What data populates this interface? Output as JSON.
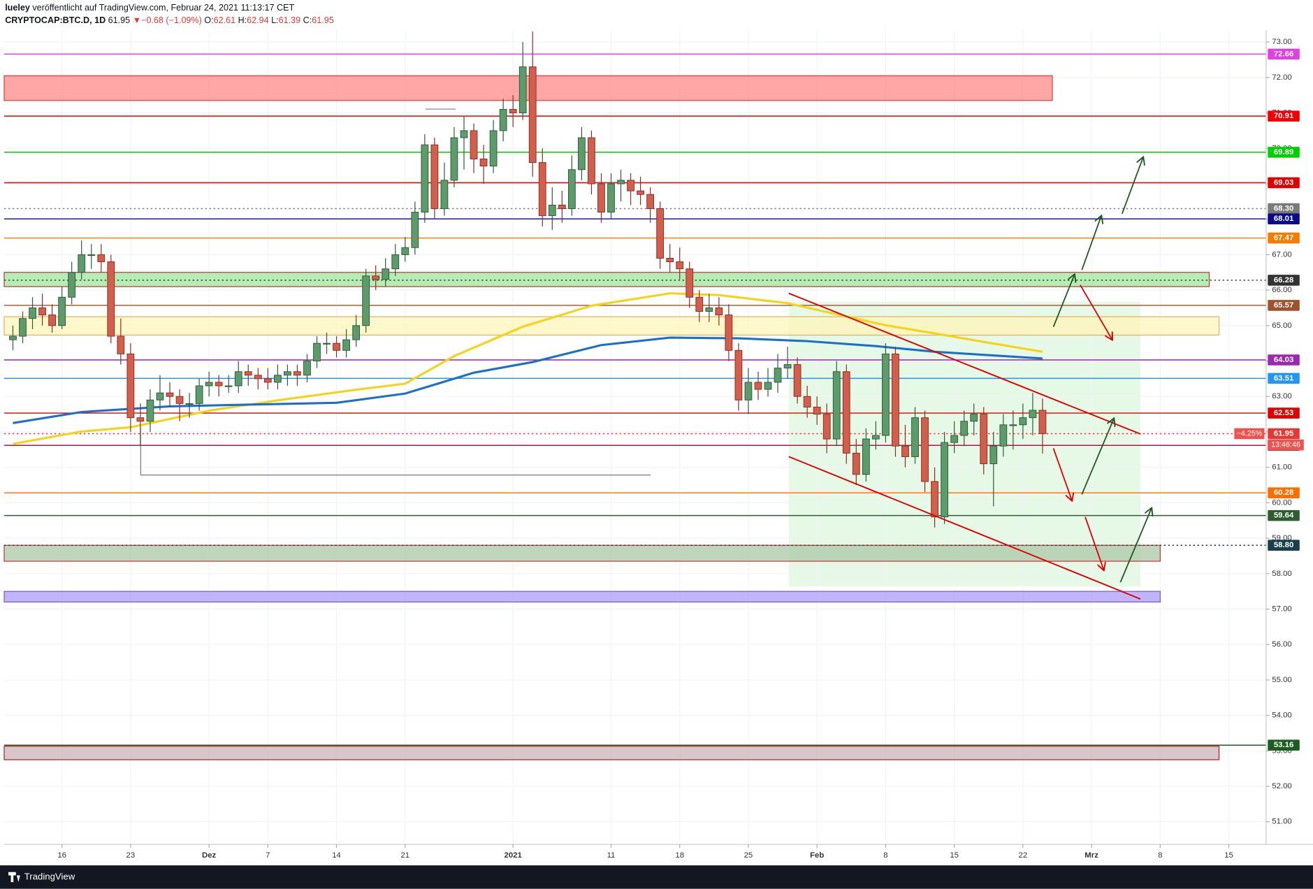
{
  "header": {
    "author": "lueley",
    "published": "veröffentlicht auf TradingView.com, Februar 24, 2021 11:13:17 CET",
    "symbol": "CRYPTOCAP:BTC.D, 1D",
    "last": 61.95,
    "direction": "▼",
    "change": "−0.68 (−1.09%)",
    "o_label": "O:",
    "open": 62.61,
    "h_label": "H:",
    "high": 62.94,
    "l_label": "L:",
    "low": 61.39,
    "c_label": "C:",
    "close": 61.95
  },
  "footer": {
    "brand": "TradingView"
  },
  "chart_data": {
    "type": "candlestick",
    "xlim": [
      -5.89,
      122.8
    ],
    "ylim": [
      50.36,
      73.33
    ],
    "grid": true,
    "up_color": "#5d9b6a",
    "down_color": "#d0604d",
    "xticks": [
      {
        "value": 0,
        "label": "16"
      },
      {
        "value": 7,
        "label": "23"
      },
      {
        "value": 15,
        "label": "Dez"
      },
      {
        "value": 21,
        "label": "7"
      },
      {
        "value": 28,
        "label": "14"
      },
      {
        "value": 35,
        "label": "21"
      },
      {
        "value": 46,
        "label": "2021"
      },
      {
        "value": 56,
        "label": "11"
      },
      {
        "value": 63,
        "label": "18"
      },
      {
        "value": 70,
        "label": "25"
      },
      {
        "value": 77,
        "label": "Feb"
      },
      {
        "value": 84,
        "label": "8"
      },
      {
        "value": 91,
        "label": "15"
      },
      {
        "value": 98,
        "label": "22"
      },
      {
        "value": 105,
        "label": "Mrz"
      },
      {
        "value": 112,
        "label": "8"
      },
      {
        "value": 119,
        "label": "15"
      }
    ],
    "yticks": [
      {
        "value": 51,
        "label": "51.00"
      },
      {
        "value": 52,
        "label": "52.00"
      },
      {
        "value": 53,
        "label": "53.00"
      },
      {
        "value": 54,
        "label": "54.00"
      },
      {
        "value": 55,
        "label": "55.00"
      },
      {
        "value": 56,
        "label": "56.00"
      },
      {
        "value": 57,
        "label": "57.00"
      },
      {
        "value": 58,
        "label": "58.00"
      },
      {
        "value": 59,
        "label": "59.00"
      },
      {
        "value": 60,
        "label": "60.00"
      },
      {
        "value": 61,
        "label": "61.00"
      },
      {
        "value": 62,
        "label": "62.00"
      },
      {
        "value": 63,
        "label": "63.00"
      },
      {
        "value": 64,
        "label": "64.00"
      },
      {
        "value": 65,
        "label": "65.00"
      },
      {
        "value": 66,
        "label": "66.00"
      },
      {
        "value": 67,
        "label": "67.00"
      },
      {
        "value": 68,
        "label": "68.00"
      },
      {
        "value": 69,
        "label": "69.00"
      },
      {
        "value": 70,
        "label": "70.00"
      },
      {
        "value": 71,
        "label": "71.00"
      },
      {
        "value": 72,
        "label": "72.00"
      },
      {
        "value": 73,
        "label": "73.00"
      }
    ],
    "zones": [
      {
        "from": 71.35,
        "to": 72.05,
        "end": 101,
        "fill": "#ff8a8a",
        "stroke": "#e53935"
      },
      {
        "from": 66.1,
        "to": 66.5,
        "end": 117,
        "fill": "#9be89b",
        "stroke": "#d32f2f"
      },
      {
        "from": 64.73,
        "to": 65.25,
        "end": 118,
        "fill": "#fff6b8",
        "stroke": "#e0b060"
      },
      {
        "from": 58.35,
        "to": 58.8,
        "end": 112,
        "fill": "#a9c8a5",
        "stroke": "#d32f2f"
      },
      {
        "from": 57.2,
        "to": 57.5,
        "end": 112,
        "fill": "#a99cf5",
        "stroke": "#7e57c2"
      },
      {
        "from": 52.75,
        "to": 53.13,
        "end": 118,
        "fill": "#cbb3b8",
        "stroke": "#b71c1c"
      }
    ],
    "levels": [
      {
        "value": 72.66,
        "color": "#e040e0"
      },
      {
        "value": 70.91,
        "color": "#f00000"
      },
      {
        "value": 69.89,
        "color": "#00d000"
      },
      {
        "value": 69.03,
        "color": "#e00000"
      },
      {
        "value": 68.3,
        "label": "68.30",
        "color": "#7a7a7a",
        "dash": true
      },
      {
        "value": 68.01,
        "color": "#0a0a8a"
      },
      {
        "value": 67.47,
        "color": "#f57c00"
      },
      {
        "value": 66.28,
        "color": "#333333",
        "dash": true
      },
      {
        "value": 65.57,
        "color": "#a0522d"
      },
      {
        "value": 64.03,
        "color": "#9c27b0"
      },
      {
        "value": 63.51,
        "color": "#2196f3"
      },
      {
        "value": 62.53,
        "color": "#e00000"
      },
      {
        "value": 61.95,
        "color": "#e53935",
        "dash": true
      },
      {
        "value": 61.62,
        "color": "#b0164e"
      },
      {
        "value": 60.28,
        "color": "#ff6d00"
      },
      {
        "value": 59.64,
        "color": "#2e5d2e"
      },
      {
        "value": 58.8,
        "label": "58.80",
        "color": "#17404a",
        "dash": true
      },
      {
        "value": 53.16,
        "color": "#1b5e20"
      }
    ],
    "badges": {
      "change": "−4.25%",
      "countdown": "13:46:46"
    },
    "indicators": [
      {
        "color": "#f5d31b",
        "x": [
          -5,
          2,
          7,
          15,
          22,
          30,
          35,
          40,
          47,
          54,
          62,
          67,
          74,
          79,
          84,
          89,
          94,
          100
        ],
        "values": [
          61.66,
          62.01,
          62.13,
          62.6,
          62.89,
          63.19,
          63.36,
          64.14,
          64.97,
          65.56,
          65.91,
          65.86,
          65.63,
          65.32,
          65.01,
          64.78,
          64.54,
          64.26
        ]
      },
      {
        "color": "#1e6fc8",
        "x": [
          -5,
          2,
          11,
          19,
          28,
          35,
          42,
          48,
          55,
          62,
          69,
          76,
          83,
          89,
          96,
          100
        ],
        "values": [
          62.25,
          62.56,
          62.72,
          62.77,
          62.82,
          63.08,
          63.67,
          63.97,
          64.45,
          64.66,
          64.64,
          64.56,
          64.42,
          64.26,
          64.14,
          64.07
        ]
      }
    ],
    "x": [
      -5,
      -4,
      -3,
      -2,
      -1,
      0,
      1,
      2,
      3,
      4,
      5,
      6,
      7,
      8,
      9,
      10,
      11,
      12,
      13,
      14,
      15,
      16,
      17,
      18,
      19,
      20,
      21,
      22,
      23,
      24,
      25,
      26,
      27,
      28,
      29,
      30,
      31,
      32,
      33,
      34,
      35,
      36,
      37,
      38,
      39,
      40,
      41,
      42,
      43,
      44,
      45,
      46,
      47,
      48,
      49,
      50,
      51,
      52,
      53,
      54,
      55,
      56,
      57,
      58,
      59,
      60,
      61,
      62,
      63,
      64,
      65,
      66,
      67,
      68,
      69,
      70,
      71,
      72,
      73,
      74,
      75,
      76,
      77,
      78,
      79,
      80,
      81,
      82,
      83,
      84,
      85,
      86,
      87,
      88,
      89,
      90,
      91,
      92,
      93,
      94,
      95,
      96,
      97,
      98,
      99,
      100
    ],
    "ohlc": [
      [
        64.6,
        65.0,
        64.3,
        64.7
      ],
      [
        64.7,
        65.4,
        64.5,
        65.2
      ],
      [
        65.2,
        65.8,
        64.9,
        65.5
      ],
      [
        65.5,
        65.9,
        65.0,
        65.3
      ],
      [
        65.3,
        65.6,
        64.8,
        65.0
      ],
      [
        65.0,
        66.1,
        64.9,
        65.8
      ],
      [
        65.8,
        66.8,
        65.6,
        66.5
      ],
      [
        66.5,
        67.4,
        66.3,
        67.0
      ],
      [
        67.0,
        67.3,
        66.6,
        67.0
      ],
      [
        67.0,
        67.3,
        66.5,
        66.8
      ],
      [
        66.8,
        67.0,
        64.5,
        64.7
      ],
      [
        64.7,
        65.2,
        63.9,
        64.2
      ],
      [
        64.2,
        64.5,
        62.0,
        62.4
      ],
      [
        62.4,
        62.8,
        61.6,
        62.3
      ],
      [
        62.3,
        63.2,
        62.0,
        62.9
      ],
      [
        62.9,
        63.6,
        62.6,
        63.1
      ],
      [
        63.1,
        63.4,
        62.7,
        63.0
      ],
      [
        63.0,
        63.2,
        62.3,
        62.8
      ],
      [
        62.8,
        63.1,
        62.4,
        62.8
      ],
      [
        62.8,
        63.5,
        62.6,
        63.3
      ],
      [
        63.3,
        63.7,
        63.0,
        63.4
      ],
      [
        63.4,
        63.6,
        63.0,
        63.3
      ],
      [
        63.3,
        63.6,
        63.1,
        63.3
      ],
      [
        63.3,
        64.0,
        63.1,
        63.7
      ],
      [
        63.7,
        63.9,
        63.3,
        63.6
      ],
      [
        63.6,
        63.8,
        63.2,
        63.5
      ],
      [
        63.5,
        63.8,
        63.2,
        63.4
      ],
      [
        63.4,
        63.9,
        63.2,
        63.6
      ],
      [
        63.6,
        63.9,
        63.3,
        63.7
      ],
      [
        63.7,
        63.9,
        63.3,
        63.6
      ],
      [
        63.6,
        64.2,
        63.4,
        64.0
      ],
      [
        64.0,
        64.7,
        63.8,
        64.5
      ],
      [
        64.5,
        64.8,
        64.2,
        64.5
      ],
      [
        64.5,
        64.7,
        64.1,
        64.3
      ],
      [
        64.3,
        64.9,
        64.1,
        64.6
      ],
      [
        64.6,
        65.3,
        64.4,
        65.0
      ],
      [
        65.0,
        66.6,
        64.8,
        66.4
      ],
      [
        66.4,
        66.7,
        66.0,
        66.3
      ],
      [
        66.3,
        66.9,
        66.1,
        66.6
      ],
      [
        66.6,
        67.3,
        66.4,
        67.0
      ],
      [
        67.0,
        67.5,
        66.8,
        67.2
      ],
      [
        67.2,
        68.5,
        67.0,
        68.2
      ],
      [
        68.2,
        70.4,
        67.9,
        70.1
      ],
      [
        70.1,
        70.3,
        68.0,
        68.3
      ],
      [
        68.3,
        69.6,
        68.1,
        69.1
      ],
      [
        69.1,
        70.6,
        68.9,
        70.3
      ],
      [
        70.3,
        70.9,
        69.4,
        70.5
      ],
      [
        70.5,
        70.7,
        69.3,
        69.7
      ],
      [
        69.7,
        70.1,
        69.0,
        69.5
      ],
      [
        69.5,
        70.8,
        69.3,
        70.5
      ],
      [
        70.5,
        71.4,
        70.2,
        71.1
      ],
      [
        71.1,
        71.5,
        70.6,
        71.0
      ],
      [
        71.0,
        73.0,
        70.8,
        72.3
      ],
      [
        72.3,
        73.3,
        69.2,
        69.6
      ],
      [
        69.6,
        70.0,
        67.8,
        68.1
      ],
      [
        68.1,
        68.9,
        67.7,
        68.4
      ],
      [
        68.4,
        68.8,
        67.9,
        68.3
      ],
      [
        68.3,
        69.8,
        68.1,
        69.4
      ],
      [
        69.4,
        70.6,
        69.1,
        70.3
      ],
      [
        70.3,
        70.5,
        68.7,
        69.0
      ],
      [
        69.0,
        69.3,
        67.9,
        68.2
      ],
      [
        68.2,
        69.3,
        68.0,
        69.0
      ],
      [
        69.0,
        69.4,
        68.5,
        69.1
      ],
      [
        69.1,
        69.3,
        68.4,
        68.8
      ],
      [
        68.8,
        69.2,
        68.4,
        68.7
      ],
      [
        68.7,
        68.9,
        67.9,
        68.3
      ],
      [
        68.3,
        68.5,
        66.6,
        66.9
      ],
      [
        66.9,
        67.3,
        66.5,
        66.8
      ],
      [
        66.8,
        67.2,
        66.3,
        66.6
      ],
      [
        66.6,
        66.8,
        65.5,
        65.8
      ],
      [
        65.8,
        66.0,
        65.1,
        65.4
      ],
      [
        65.4,
        65.9,
        65.1,
        65.5
      ],
      [
        65.5,
        65.8,
        65.0,
        65.3
      ],
      [
        65.3,
        65.6,
        64.0,
        64.3
      ],
      [
        64.3,
        64.5,
        62.6,
        62.9
      ],
      [
        62.9,
        63.8,
        62.5,
        63.4
      ],
      [
        63.4,
        63.7,
        62.9,
        63.2
      ],
      [
        63.2,
        63.8,
        63.0,
        63.4
      ],
      [
        63.4,
        64.2,
        63.1,
        63.8
      ],
      [
        63.8,
        64.4,
        63.5,
        63.9
      ],
      [
        63.9,
        64.1,
        62.8,
        63.0
      ],
      [
        63.0,
        63.3,
        62.4,
        62.7
      ],
      [
        62.7,
        63.0,
        62.2,
        62.5
      ],
      [
        62.5,
        62.8,
        61.4,
        61.8
      ],
      [
        61.8,
        64.0,
        61.6,
        63.7
      ],
      [
        63.7,
        63.9,
        61.1,
        61.4
      ],
      [
        61.4,
        61.8,
        60.5,
        60.8
      ],
      [
        60.8,
        62.1,
        60.6,
        61.8
      ],
      [
        61.8,
        62.3,
        61.5,
        61.9
      ],
      [
        61.9,
        64.5,
        61.7,
        64.2
      ],
      [
        64.2,
        64.4,
        61.3,
        61.6
      ],
      [
        61.6,
        62.2,
        61.0,
        61.3
      ],
      [
        61.3,
        62.7,
        61.1,
        62.4
      ],
      [
        62.4,
        62.6,
        60.3,
        60.6
      ],
      [
        60.6,
        61.0,
        59.3,
        59.6
      ],
      [
        59.6,
        62.0,
        59.4,
        61.7
      ],
      [
        61.7,
        62.3,
        61.4,
        61.9
      ],
      [
        61.9,
        62.6,
        61.6,
        62.3
      ],
      [
        62.3,
        62.8,
        61.9,
        62.5
      ],
      [
        62.5,
        62.7,
        60.8,
        61.1
      ],
      [
        61.1,
        62.0,
        59.9,
        61.6
      ],
      [
        61.6,
        62.5,
        61.3,
        62.2
      ],
      [
        62.2,
        62.6,
        61.5,
        62.2
      ],
      [
        62.2,
        62.8,
        61.8,
        62.4
      ],
      [
        62.4,
        63.1,
        61.9,
        62.61
      ],
      [
        62.61,
        62.94,
        61.39,
        61.95
      ]
    ]
  }
}
